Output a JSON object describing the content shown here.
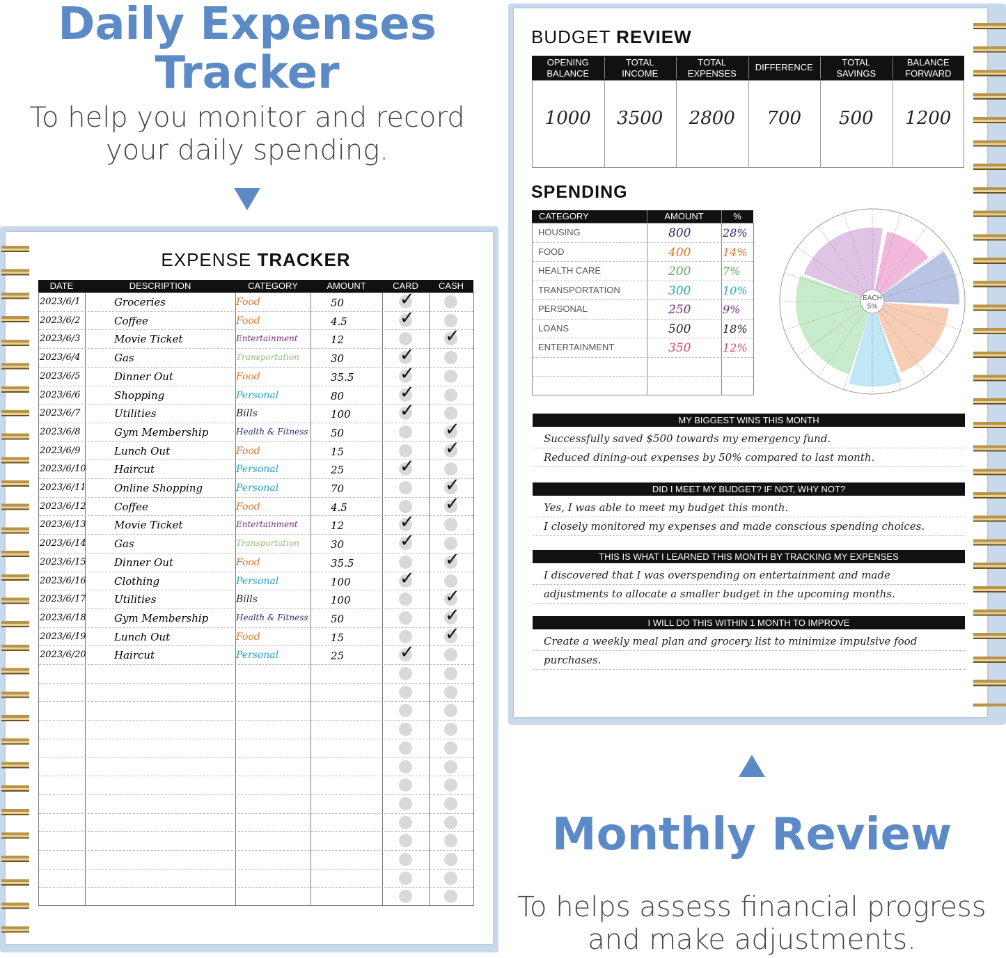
{
  "hero_left": {
    "title_line1": "Daily Expenses",
    "title_line2": "Tracker",
    "subtitle_line1": "To help you monitor and record",
    "subtitle_line2": "your daily spending."
  },
  "hero_right": {
    "title": "Monthly Review",
    "subtitle_line1": "To helps assess financial progress",
    "subtitle_line2": "and make adjustments."
  },
  "brand_color": "#5b8ac6",
  "expense_tracker": {
    "title_light": "EXPENSE ",
    "title_bold": "TRACKER",
    "columns": [
      "DATE",
      "DESCRIPTION",
      "CATEGORY",
      "AMOUNT",
      "CARD",
      "CASH"
    ],
    "category_colors": {
      "Food": "#d9772b",
      "Entertainment": "#7a2a7e",
      "Transportation": "#8fbf7a",
      "Personal": "#29a3c6",
      "Bills": "#222222",
      "Health & Fitness": "#2a2a6e"
    },
    "rows": [
      {
        "date": "2023/6/1",
        "description": "Groceries",
        "category": "Food",
        "amount": "50",
        "payment": "card"
      },
      {
        "date": "2023/6/2",
        "description": "Coffee",
        "category": "Food",
        "amount": "4.5",
        "payment": "card"
      },
      {
        "date": "2023/6/3",
        "description": "Movie Ticket",
        "category": "Entertainment",
        "amount": "12",
        "payment": "cash"
      },
      {
        "date": "2023/6/4",
        "description": "Gas",
        "category": "Transportation",
        "amount": "30",
        "payment": "card"
      },
      {
        "date": "2023/6/5",
        "description": "Dinner Out",
        "category": "Food",
        "amount": "35.5",
        "payment": "card"
      },
      {
        "date": "2023/6/6",
        "description": "Shopping",
        "category": "Personal",
        "amount": "80",
        "payment": "card"
      },
      {
        "date": "2023/6/7",
        "description": "Utilities",
        "category": "Bills",
        "amount": "100",
        "payment": "card"
      },
      {
        "date": "2023/6/8",
        "description": "Gym Membership",
        "category": "Health & Fitness",
        "amount": "50",
        "payment": "cash"
      },
      {
        "date": "2023/6/9",
        "description": "Lunch Out",
        "category": "Food",
        "amount": "15",
        "payment": "cash"
      },
      {
        "date": "2023/6/10",
        "description": "Haircut",
        "category": "Personal",
        "amount": "25",
        "payment": "card"
      },
      {
        "date": "2023/6/11",
        "description": "Online Shopping",
        "category": "Personal",
        "amount": "70",
        "payment": "cash"
      },
      {
        "date": "2023/6/12",
        "description": "Coffee",
        "category": "Food",
        "amount": "4.5",
        "payment": "cash"
      },
      {
        "date": "2023/6/13",
        "description": "Movie Ticket",
        "category": "Entertainment",
        "amount": "12",
        "payment": "card"
      },
      {
        "date": "2023/6/14",
        "description": "Gas",
        "category": "Transportation",
        "amount": "30",
        "payment": "card"
      },
      {
        "date": "2023/6/15",
        "description": "Dinner Out",
        "category": "Food",
        "amount": "35.5",
        "payment": "cash"
      },
      {
        "date": "2023/6/16",
        "description": "Clothing",
        "category": "Personal",
        "amount": "100",
        "payment": "card"
      },
      {
        "date": "2023/6/17",
        "description": "Utilities",
        "category": "Bills",
        "amount": "100",
        "payment": "cash"
      },
      {
        "date": "2023/6/18",
        "description": "Gym Membership",
        "category": "Health & Fitness",
        "amount": "50",
        "payment": "cash"
      },
      {
        "date": "2023/6/19",
        "description": "Lunch Out",
        "category": "Food",
        "amount": "15",
        "payment": "cash"
      },
      {
        "date": "2023/6/20",
        "description": "Haircut",
        "category": "Personal",
        "amount": "25",
        "payment": "card"
      }
    ]
  },
  "budget_review": {
    "title_light": "BUDGET ",
    "title_bold": "REVIEW",
    "columns": [
      {
        "label_line1": "OPENING",
        "label_line2": "BALANCE",
        "value": "1000"
      },
      {
        "label_line1": "TOTAL",
        "label_line2": "INCOME",
        "value": "3500"
      },
      {
        "label_line1": "TOTAL",
        "label_line2": "EXPENSES",
        "value": "2800"
      },
      {
        "label_line1": "DIFFERENCE",
        "label_line2": "",
        "value": "700"
      },
      {
        "label_line1": "TOTAL",
        "label_line2": "SAVINGS",
        "value": "500"
      },
      {
        "label_line1": "BALANCE",
        "label_line2": "FORWARD",
        "value": "1200"
      }
    ]
  },
  "spending": {
    "title": "SPENDING",
    "columns": [
      "CATEGORY",
      "AMOUNT",
      "%"
    ],
    "rows": [
      {
        "category": "HOUSING",
        "amount": "800",
        "percent": "28%",
        "color": "#2a2a6e"
      },
      {
        "category": "FOOD",
        "amount": "400",
        "percent": "14%",
        "color": "#d9772b"
      },
      {
        "category": "HEALTH CARE",
        "amount": "200",
        "percent": "7%",
        "color": "#5daa5a"
      },
      {
        "category": "TRANSPORTATION",
        "amount": "300",
        "percent": "10%",
        "color": "#29a3c6"
      },
      {
        "category": "PERSONAL",
        "amount": "250",
        "percent": "9%",
        "color": "#7a2a7e"
      },
      {
        "category": "LOANS",
        "amount": "500",
        "percent": "18%",
        "color": "#222222"
      },
      {
        "category": "ENTERTAINMENT",
        "amount": "350",
        "percent": "12%",
        "color": "#d94a5a"
      }
    ],
    "pie_center_label_line1": "EACH",
    "pie_center_label_line2": "5%",
    "pie_slices": [
      {
        "color": "#f2b8dc",
        "start_deg": 12,
        "end_deg": 52,
        "reach": 0.82
      },
      {
        "color": "#b9c3e3",
        "start_deg": 55,
        "end_deg": 92,
        "reach": 1.0
      },
      {
        "color": "#f8cdb6",
        "start_deg": 95,
        "end_deg": 158,
        "reach": 0.88
      },
      {
        "color": "#bfe7f5",
        "start_deg": 160,
        "end_deg": 196,
        "reach": 0.98
      },
      {
        "color": "#c8ebcc",
        "start_deg": 198,
        "end_deg": 290,
        "reach": 0.88
      },
      {
        "color": "#e0c4e6",
        "start_deg": 292,
        "end_deg": 368,
        "reach": 0.85
      }
    ]
  },
  "reflections": [
    {
      "heading": "MY BIGGEST WINS THIS MONTH",
      "lines": [
        "Successfully saved $500 towards my emergency fund.",
        "Reduced dining-out expenses by 50% compared to last month."
      ]
    },
    {
      "heading": "DID I MEET MY BUDGET? IF NOT, WHY NOT?",
      "lines": [
        "Yes, I was able to meet my budget this month.",
        "I closely monitored my expenses and made conscious spending choices."
      ]
    },
    {
      "heading": "THIS IS WHAT I LEARNED THIS MONTH BY TRACKING MY EXPENSES",
      "lines": [
        "I discovered that I was overspending on entertainment and made",
        "adjustments to allocate a smaller budget in the upcoming months."
      ]
    },
    {
      "heading": "I WILL DO THIS WITHIN 1 MONTH TO IMPROVE",
      "lines": [
        "Create a weekly meal plan and grocery list to minimize impulsive food",
        "purchases."
      ]
    }
  ]
}
